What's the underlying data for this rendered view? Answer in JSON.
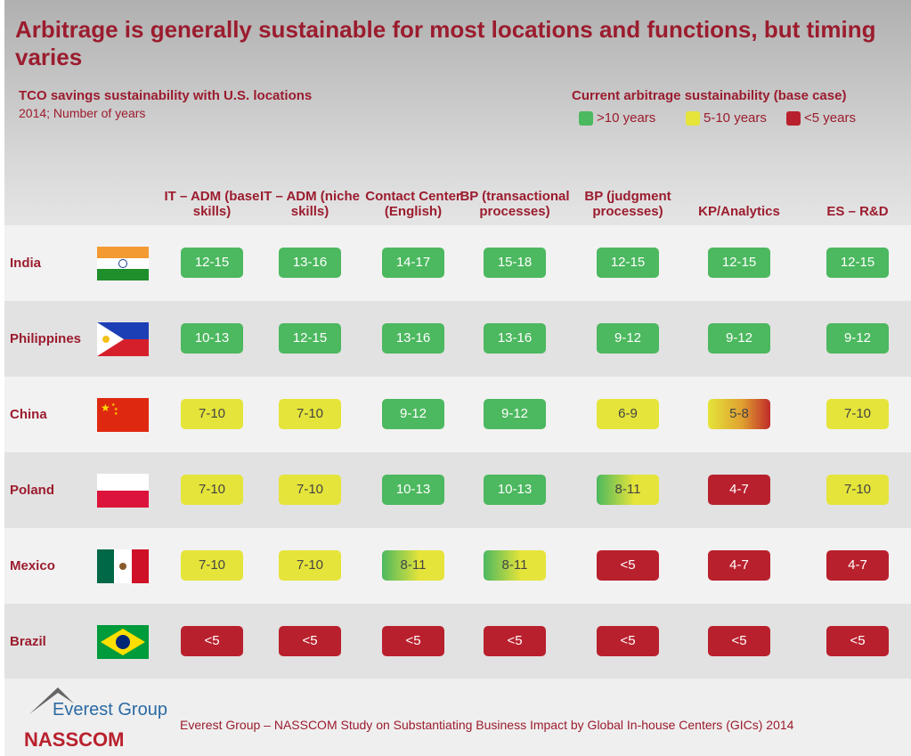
{
  "title": "Arbitrage is generally sustainable for most locations and functions, but timing varies",
  "subtitle": "TCO savings sustainability with U.S. locations",
  "subtitle2": "2014; Number of years",
  "legend": {
    "title": "Current arbitrage sustainability (base case)",
    "items": [
      {
        "label": ">10 years",
        "color": "#4cb85f"
      },
      {
        "label": "5-10 years",
        "color": "#e5e43a"
      },
      {
        "label": "<5 years",
        "color": "#b9202d"
      }
    ]
  },
  "columns": [
    "IT – ADM (base skills)",
    "IT – ADM (niche skills)",
    "Contact Center (English)",
    "BP (transactional processes)",
    "BP (judgment processes)",
    "KP/Analytics",
    "ES – R&D"
  ],
  "rows": [
    {
      "country": "India",
      "cells": [
        [
          "12-15",
          "g"
        ],
        [
          "13-16",
          "g"
        ],
        [
          "14-17",
          "g"
        ],
        [
          "15-18",
          "g"
        ],
        [
          "12-15",
          "g"
        ],
        [
          "12-15",
          "g"
        ],
        [
          "12-15",
          "g"
        ]
      ]
    },
    {
      "country": "Philippines",
      "cells": [
        [
          "10-13",
          "g"
        ],
        [
          "12-15",
          "g"
        ],
        [
          "13-16",
          "g"
        ],
        [
          "13-16",
          "g"
        ],
        [
          "9-12",
          "g"
        ],
        [
          "9-12",
          "g"
        ],
        [
          "9-12",
          "g"
        ]
      ]
    },
    {
      "country": "China",
      "cells": [
        [
          "7-10",
          "y"
        ],
        [
          "7-10",
          "y"
        ],
        [
          "9-12",
          "g"
        ],
        [
          "9-12",
          "g"
        ],
        [
          "6-9",
          "y"
        ],
        [
          "5-8",
          "yr"
        ],
        [
          "7-10",
          "y"
        ]
      ]
    },
    {
      "country": "Poland",
      "cells": [
        [
          "7-10",
          "y"
        ],
        [
          "7-10",
          "y"
        ],
        [
          "10-13",
          "g"
        ],
        [
          "10-13",
          "g"
        ],
        [
          "8-11",
          "gy"
        ],
        [
          "4-7",
          "r"
        ],
        [
          "7-10",
          "y"
        ]
      ]
    },
    {
      "country": "Mexico",
      "cells": [
        [
          "7-10",
          "y"
        ],
        [
          "7-10",
          "y"
        ],
        [
          "8-11",
          "gy"
        ],
        [
          "8-11",
          "gy"
        ],
        [
          "<5",
          "r"
        ],
        [
          "4-7",
          "r"
        ],
        [
          "4-7",
          "r"
        ]
      ]
    },
    {
      "country": "Brazil",
      "cells": [
        [
          "<5",
          "r"
        ],
        [
          "<5",
          "r"
        ],
        [
          "<5",
          "r"
        ],
        [
          "<5",
          "r"
        ],
        [
          "<5",
          "r"
        ],
        [
          "<5",
          "r"
        ],
        [
          "<5",
          "r"
        ]
      ]
    }
  ],
  "footer": {
    "logo1": "Everest Group",
    "logo2": "NASSCOM",
    "source": "Everest Group – NASSCOM Study on Substantiating Business Impact by Global In-house Centers (GICs) 2014"
  }
}
